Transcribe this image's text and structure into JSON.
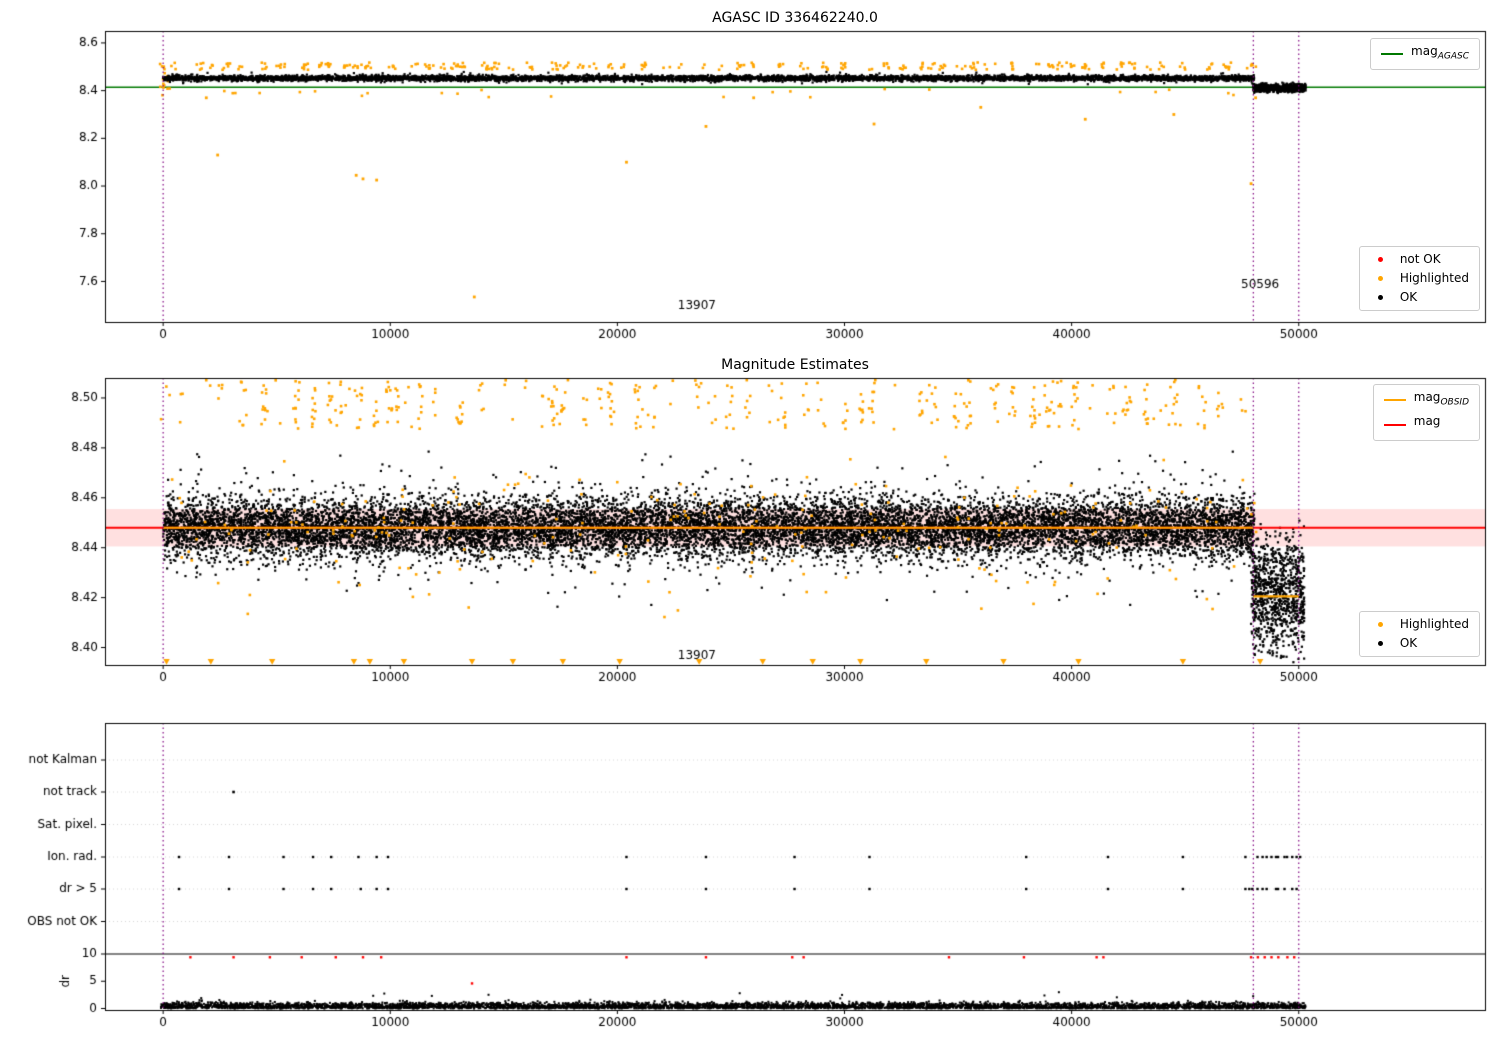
{
  "chart_data": [
    {
      "type": "scatter",
      "title": "AGASC ID 336462240.0",
      "xlim": [
        -2560,
        58200
      ],
      "ylim": [
        7.43,
        8.65
      ],
      "xtick_vals": [
        0,
        10000,
        20000,
        30000,
        40000,
        50000
      ],
      "xtick_labels": [
        "0",
        "10000",
        "20000",
        "30000",
        "40000",
        "50000"
      ],
      "ytick_vals": [
        7.6,
        7.8,
        8.0,
        8.2,
        8.4,
        8.6
      ],
      "ytick_labels": [
        "7.6",
        "7.8",
        "8.0",
        "8.2",
        "8.4",
        "8.6"
      ],
      "hline": {
        "y": 8.414,
        "color": "#007800"
      },
      "vlines": {
        "x": [
          0,
          48000,
          50000
        ],
        "color": "#800080",
        "style": "dotted"
      },
      "annotations": [
        {
          "text": "13907",
          "x": 23500,
          "y": 7.497
        },
        {
          "text": "50596",
          "x": 48300,
          "y": 7.585
        }
      ],
      "legend_line": [
        {
          "prefix": "mag",
          "sub": "AGASC",
          "color": "#007800"
        }
      ],
      "legend_points": [
        {
          "label": "not OK",
          "color": "#ff0000"
        },
        {
          "label": "Highlighted",
          "color": "#ffa500"
        },
        {
          "label": "OK",
          "color": "#000000"
        }
      ],
      "series": {
        "ok_band": {
          "color": "#000000",
          "x_range": [
            0,
            48050
          ],
          "center": 8.452,
          "sigma": 0.0055,
          "clip": [
            8.431,
            8.476
          ],
          "n": 6000
        },
        "ok_fuzz": {
          "color": "#000000",
          "x_range": [
            0,
            48050
          ],
          "center": 8.452,
          "sigma": 0.012,
          "clip": [
            8.424,
            8.482
          ],
          "n": 160
        },
        "ok_tail": {
          "color": "#000000",
          "x_range": [
            48000,
            50300
          ],
          "center": 8.411,
          "sigma": 0.009,
          "clip": [
            8.388,
            8.436
          ],
          "n": 700
        },
        "hl_top": {
          "color": "#ffa500",
          "y_range": [
            8.487,
            8.518
          ],
          "x_max": 48100,
          "spacing": 760
        },
        "hl_low": {
          "color": "#ffa500",
          "x_range": [
            0,
            47500
          ],
          "y_range": [
            8.372,
            8.408
          ],
          "n": 24
        },
        "hl_zero_col": {
          "color": "#ffa500",
          "x_range": [
            -150,
            300
          ],
          "y_range": [
            8.38,
            8.52
          ],
          "n": 14
        },
        "hl_outliers": [
          [
            1900,
            8.37
          ],
          [
            2400,
            8.13
          ],
          [
            8500,
            8.045
          ],
          [
            8800,
            8.03
          ],
          [
            9400,
            8.025
          ],
          [
            13700,
            7.535
          ],
          [
            20400,
            8.1
          ],
          [
            23900,
            8.25
          ],
          [
            26000,
            8.37
          ],
          [
            31300,
            8.26
          ],
          [
            36000,
            8.33
          ],
          [
            40600,
            8.28
          ],
          [
            44500,
            8.3
          ],
          [
            47900,
            8.01
          ],
          [
            48100,
            8.37
          ]
        ]
      }
    },
    {
      "type": "scatter",
      "title": "Magnitude Estimates",
      "xlim": [
        -2560,
        58200
      ],
      "ylim": [
        8.393,
        8.508
      ],
      "xtick_vals": [
        0,
        10000,
        20000,
        30000,
        40000,
        50000
      ],
      "xtick_labels": [
        "0",
        "10000",
        "20000",
        "30000",
        "40000",
        "50000"
      ],
      "ytick_vals": [
        8.4,
        8.42,
        8.44,
        8.46,
        8.48,
        8.5
      ],
      "ytick_labels": [
        "8.40",
        "8.42",
        "8.44",
        "8.46",
        "8.48",
        "8.50"
      ],
      "mag_line": {
        "y": 8.448,
        "color": "#ff0000",
        "band": [
          8.4405,
          8.4555
        ],
        "band_color": "rgba(255,0,0,0.12)"
      },
      "obsid_line": {
        "color": "#ffa500",
        "segments": [
          {
            "x": [
              0,
              48000
            ],
            "y": 8.448
          },
          {
            "x": [
              48000,
              50000
            ],
            "y": 8.4205
          }
        ]
      },
      "vlines": {
        "x": [
          0,
          48000,
          50000
        ],
        "color": "#800080",
        "style": "dotted"
      },
      "annotations": [
        {
          "text": "13907",
          "x": 23500,
          "y": 8.3968
        }
      ],
      "legend_line": [
        {
          "prefix": "mag",
          "sub": "OBSID",
          "color": "#ffa500"
        },
        {
          "prefix": "mag",
          "sub": "",
          "color": "#ff0000"
        }
      ],
      "legend_points": [
        {
          "label": "Highlighted",
          "color": "#ffa500"
        },
        {
          "label": "OK",
          "color": "#000000"
        }
      ],
      "series": {
        "ok_core": {
          "color": "#000000",
          "x_range": [
            0,
            48050
          ],
          "center": 8.448,
          "sigma": 0.0057,
          "clip": [
            8.429,
            8.469
          ],
          "n": 12000
        },
        "ok_spread": {
          "color": "#000000",
          "x_range": [
            0,
            48050
          ],
          "center": 8.448,
          "sigma": 0.011,
          "clip": [
            8.406,
            8.479
          ],
          "n": 1500
        },
        "ok_tail": {
          "color": "#000000",
          "x_range": [
            47900,
            50250
          ],
          "center": 8.421,
          "sigma": 0.012,
          "clip": [
            8.394,
            8.451
          ],
          "n": 900
        },
        "hl_top": {
          "color": "#ffa500",
          "y_range": [
            8.4875,
            8.5072
          ],
          "x_max": 48300,
          "spacing": 820
        },
        "hl_mid": {
          "color": "#ffa500",
          "x_range": [
            0,
            48200
          ],
          "center": 8.448,
          "sigma": 0.014,
          "clip": [
            8.403,
            8.477
          ],
          "n": 240
        },
        "hl_tri_x": [
          150,
          2100,
          4800,
          8400,
          9100,
          10600,
          13600,
          15400,
          17600,
          20100,
          23600,
          26400,
          28600,
          30700,
          33600,
          37000,
          40300,
          44900,
          48300
        ],
        "tri_y": 8.3945
      }
    },
    {
      "type": "flags",
      "title": "",
      "xlim": [
        -2560,
        58200
      ],
      "xtick_vals": [
        0,
        10000,
        20000,
        30000,
        40000,
        50000
      ],
      "xtick_labels": [
        "0",
        "10000",
        "20000",
        "30000",
        "40000",
        "50000"
      ],
      "categories": [
        "not Kalman",
        "not track",
        "Sat. pixel.",
        "Ion. rad.",
        "dr > 5",
        "OBS not OK"
      ],
      "dr_tick_vals": [
        10,
        5,
        0
      ],
      "dr_tick_labels": [
        "10",
        "5",
        "0"
      ],
      "ylabel": "dr",
      "dr_hline": 10,
      "vlines": {
        "x": [
          0,
          48000,
          50000
        ],
        "color": "#800080",
        "style": "dotted"
      },
      "flags": {
        "color": "#000000",
        "not_track_x": [
          3100
        ],
        "ion_rad_x": [
          700,
          2900,
          5300,
          6600,
          7400,
          8600,
          9400,
          9900,
          20400,
          23900,
          27800,
          31100,
          38000,
          41600,
          44900
        ],
        "dr_gt5_x": [
          700,
          2900,
          5300,
          6600,
          7400,
          8700,
          9400,
          9900,
          20400,
          23900,
          27800,
          31100,
          38000,
          41600,
          44900
        ],
        "cluster_range": [
          47600,
          50100
        ],
        "cluster_n": 14
      },
      "dr_points": {
        "red_color": "#ff0000",
        "red_x": [
          1200,
          3100,
          4700,
          6100,
          7600,
          8800,
          9600,
          20400,
          23900,
          27700,
          28200,
          34600,
          37900,
          41100,
          41400
        ],
        "red_cluster_x": [
          47900,
          48200,
          48500,
          48800,
          49100,
          49500,
          49800
        ],
        "red_y": 9.4,
        "red_extra": [
          [
            13600,
            4.6
          ]
        ],
        "black": {
          "color": "#000000",
          "x_range": [
            -100,
            50300
          ],
          "n": 5200,
          "mean": 0.4,
          "sigma": 0.35,
          "clip": [
            0.03,
            2.3
          ]
        }
      }
    }
  ]
}
